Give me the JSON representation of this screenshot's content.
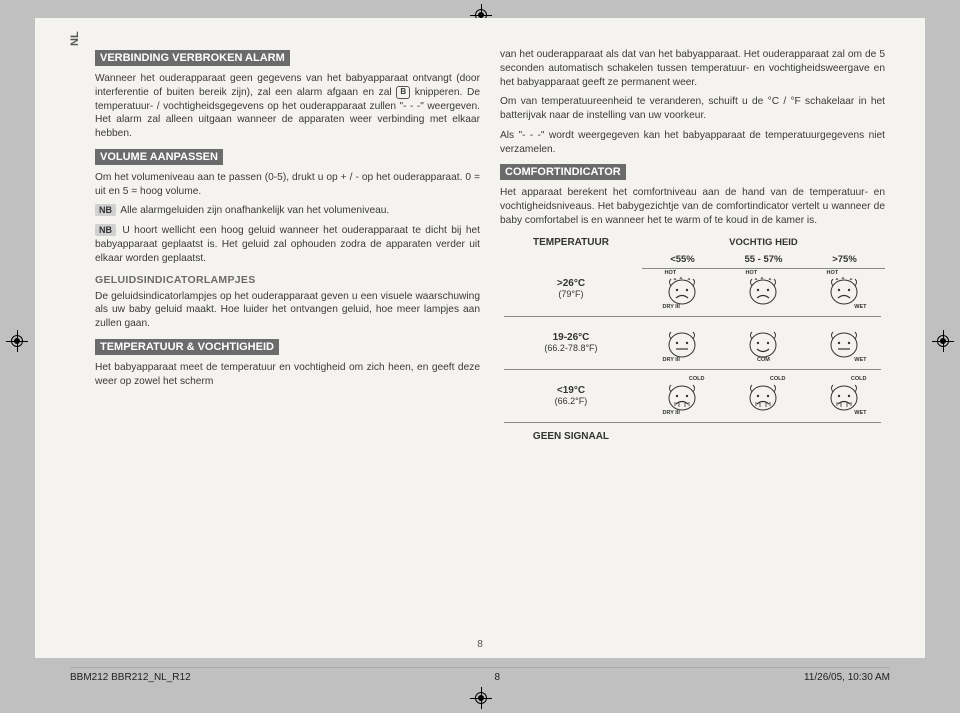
{
  "page": {
    "lang_tab": "NL",
    "page_number": "8",
    "footer_left": "BBM212 BBR212_NL_R12",
    "footer_center": "8",
    "footer_right": "11/26/05, 10:30 AM"
  },
  "col1": {
    "h1": "VERBINDING VERBROKEN ALARM",
    "p1a": "Wanneer het ouderapparaat geen gegevens van het babyapparaat ontvangt (door interferentie of buiten bereik zijn), zal een alarm afgaan en zal ",
    "p1b": " knipperen. De temperatuur- / vochtigheidsgegevens op het ouderapparaat zullen \"- - -\" weergeven. Het alarm zal alleen uitgaan wanneer de apparaten weer verbinding met elkaar hebben.",
    "icon_b": "B",
    "h2": "VOLUME AANPASSEN",
    "p2": "Om het volumeniveau aan te passen (0-5), drukt u op + / - op het ouderapparaat. 0 = uit en 5 = hoog volume.",
    "nb_label": "NB",
    "nb1": " Alle alarmgeluiden zijn onafhankelijk van het volumeniveau.",
    "nb2": " U hoort wellicht een hoog geluid wanneer het ouderapparaat te dicht bij het babyapparaat geplaatst is. Het geluid zal ophouden zodra de apparaten verder uit elkaar worden geplaatst.",
    "h3": "GELUIDSINDICATORLAMPJES",
    "p3": "De geluidsindicatorlampjes op het ouderapparaat geven u een visuele waarschuwing als uw baby geluid maakt. Hoe luider het ontvangen geluid, hoe meer lampjes aan zullen gaan.",
    "h4": "TEMPERATUUR & VOCHTIGHEID",
    "p4": "Het babyapparaat meet de temperatuur en vochtigheid om zich heen, en geeft deze weer op zowel het scherm"
  },
  "col2": {
    "p1": "van het ouderapparaat als dat van het babyapparaat. Het ouderapparaat zal om de 5 seconden automatisch schakelen tussen temperatuur- en vochtigheidsweergave en het babyapparaat geeft ze permanent weer.",
    "p2": "Om van temperatuureenheid te veranderen, schuift u de °C / °F schakelaar in het batterijvak naar de instelling van uw voorkeur.",
    "p3": "Als \"- - -\" wordt weergegeven kan het babyapparaat de temperatuurgegevens niet verzamelen.",
    "h1": "COMFORTINDICATOR",
    "p4": "Het apparaat berekent het comfortniveau aan de hand van de temperatuur- en vochtigheidsniveaus. Het babygezichtje van de comfortindicator vertelt u wanneer de baby comfortabel is en wanneer het te warm of te koud in de kamer is.",
    "table": {
      "temp_header": "TEMPERATUUR",
      "humid_header": "VOCHTIG HEID",
      "humid_cols": [
        "<55%",
        "55 - 57%",
        ">75%"
      ],
      "rows": [
        {
          "temp": ">26°C",
          "tempf": "(79°F)"
        },
        {
          "temp": "19-26°C",
          "tempf": "(66.2-78.8°F)"
        },
        {
          "temp": "<19°C",
          "tempf": "(66.2°F)"
        },
        {
          "temp": "GEEN SIGNAAL",
          "tempf": ""
        }
      ],
      "labels": {
        "hot": "HOT",
        "cold": "COLD",
        "dry": "DRY",
        "wet": "WET",
        "com": "COM",
        "bars": "III"
      }
    }
  }
}
